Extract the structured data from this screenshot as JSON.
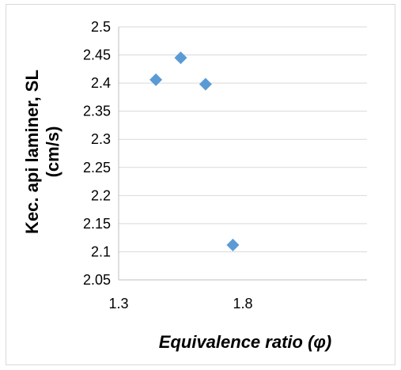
{
  "chart_data": {
    "type": "scatter",
    "title": "",
    "xlabel": "Equivalence ratio (φ)",
    "ylabel_line1": "Kec. api laminer, SL",
    "ylabel_line2": "(cm/s)",
    "xlim": [
      1.3,
      2.3
    ],
    "ylim": [
      2.05,
      2.5
    ],
    "x_ticks": [
      {
        "value": 1.3,
        "label": "1.3"
      },
      {
        "value": 1.8,
        "label": "1.8"
      }
    ],
    "y_ticks": [
      {
        "value": 2.05,
        "label": "2.05"
      },
      {
        "value": 2.1,
        "label": "2.1"
      },
      {
        "value": 2.15,
        "label": "2.15"
      },
      {
        "value": 2.2,
        "label": "2.2"
      },
      {
        "value": 2.25,
        "label": "2.25"
      },
      {
        "value": 2.3,
        "label": "2.3"
      },
      {
        "value": 2.35,
        "label": "2.35"
      },
      {
        "value": 2.4,
        "label": "2.4"
      },
      {
        "value": 2.45,
        "label": "2.45"
      },
      {
        "value": 2.5,
        "label": "2.5"
      }
    ],
    "grid": {
      "horizontal": true,
      "vertical": false
    },
    "legend": "none",
    "marker": "diamond",
    "series": [
      {
        "color": "#5b9bd5",
        "points": [
          {
            "x": 1.45,
            "y": 2.406
          },
          {
            "x": 1.55,
            "y": 2.445
          },
          {
            "x": 1.65,
            "y": 2.398
          },
          {
            "x": 1.76,
            "y": 2.112
          }
        ]
      }
    ],
    "colors": {
      "gridline": "#d9d9d9",
      "axis": "#bfbfbf",
      "marker": "#5b9bd5",
      "frame": "#d9d9d9"
    }
  }
}
